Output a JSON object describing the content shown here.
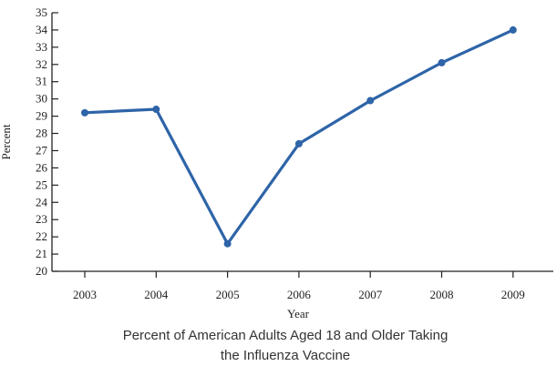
{
  "chart_data": {
    "type": "line",
    "title": "Percent of American Adults Aged 18 and Older Taking the Influenza Vaccine",
    "title_lines": [
      "Percent of American Adults Aged 18 and Older Taking",
      "the Influenza Vaccine"
    ],
    "xlabel": "Year",
    "ylabel": "Percent",
    "x": [
      "2003",
      "2004",
      "2005",
      "2006",
      "2007",
      "2008",
      "2009"
    ],
    "series": [
      {
        "values": [
          29.2,
          29.4,
          21.6,
          27.4,
          29.9,
          32.1,
          34.0
        ]
      }
    ],
    "ylim": [
      20,
      35
    ],
    "yticks": [
      20,
      21,
      22,
      23,
      24,
      25,
      26,
      27,
      28,
      29,
      30,
      31,
      32,
      33,
      34,
      35
    ],
    "grid": false,
    "legend": "none",
    "colors": {
      "line": "#2e64a8",
      "axis": "#222222"
    }
  }
}
